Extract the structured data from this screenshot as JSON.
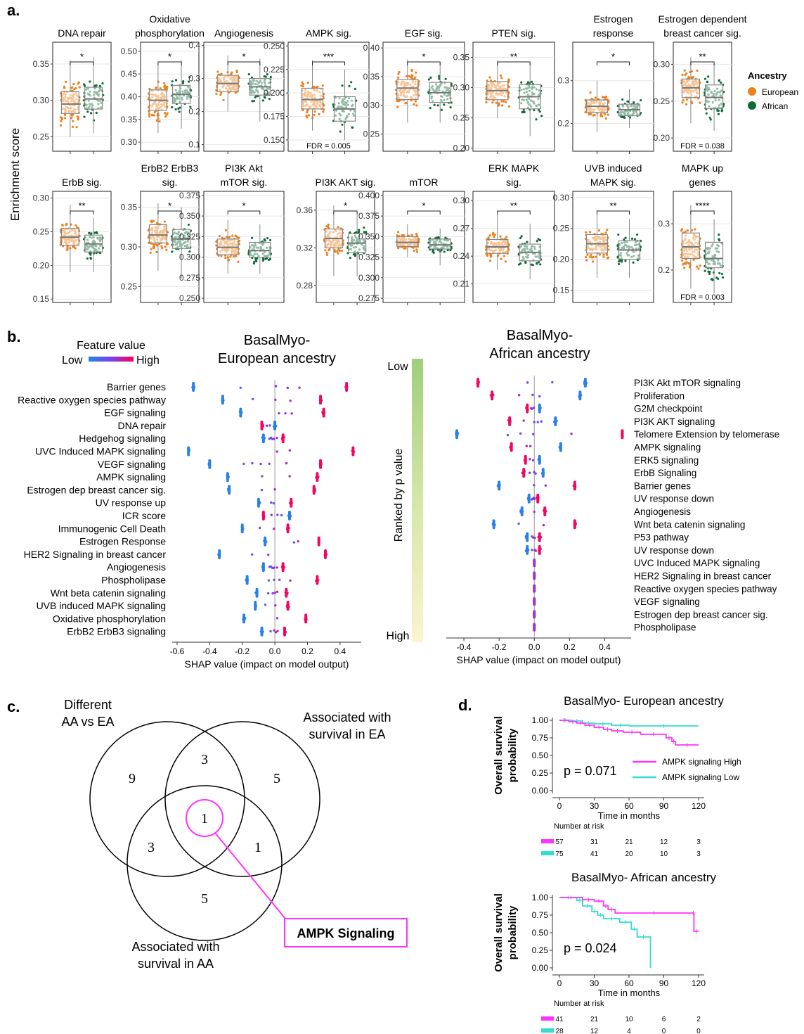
{
  "panels": {
    "a": "a.",
    "b": "b.",
    "c": "c.",
    "d": "d."
  },
  "panel_a": {
    "ylabel": "Enrichment score",
    "legend": {
      "title": "Ancestry",
      "items": [
        {
          "name": "European",
          "color": "#f07f1a"
        },
        {
          "name": "African",
          "color": "#0f6a3a"
        }
      ]
    },
    "plots": [
      {
        "title": [
          "DNA repair"
        ],
        "sig": "*",
        "ticks": [
          "0.35",
          "0.30",
          "0.25"
        ],
        "tickv": [
          0.35,
          0.3,
          0.25
        ],
        "ylim": [
          0.23,
          0.38
        ],
        "eu": {
          "q1": 0.282,
          "med": 0.295,
          "q3": 0.312,
          "lo": 0.25,
          "hi": 0.355
        },
        "af": {
          "q1": 0.288,
          "med": 0.302,
          "q3": 0.318,
          "lo": 0.255,
          "hi": 0.36
        },
        "fdr": ""
      },
      {
        "title": [
          "Oxidative",
          "phosphorylation"
        ],
        "sig": "*",
        "ticks": [
          "0.50",
          "0.45",
          "0.40",
          "0.35",
          "0.30"
        ],
        "tickv": [
          0.5,
          0.45,
          0.4,
          0.35,
          0.3
        ],
        "ylim": [
          0.28,
          0.52
        ],
        "eu": {
          "q1": 0.37,
          "med": 0.392,
          "q3": 0.415,
          "lo": 0.32,
          "hi": 0.47
        },
        "af": {
          "q1": 0.385,
          "med": 0.405,
          "q3": 0.425,
          "lo": 0.33,
          "hi": 0.48
        },
        "fdr": ""
      },
      {
        "title": [
          "Angiogenesis"
        ],
        "sig": "*",
        "ticks": [
          "0.4",
          "0.3",
          "0.2",
          "0.1"
        ],
        "tickv": [
          0.4,
          0.3,
          0.2,
          0.1
        ],
        "ylim": [
          0.08,
          0.41
        ],
        "eu": {
          "q1": 0.26,
          "med": 0.285,
          "q3": 0.31,
          "lo": 0.2,
          "hi": 0.37
        },
        "af": {
          "q1": 0.25,
          "med": 0.275,
          "q3": 0.3,
          "lo": 0.17,
          "hi": 0.36
        },
        "fdr": ""
      },
      {
        "title": [
          "AMPK sig."
        ],
        "sig": "***",
        "ticks": [
          "0.250",
          "0.225",
          "0.200",
          "0.175",
          "0.150"
        ],
        "tickv": [
          0.25,
          0.225,
          0.2,
          0.175,
          0.15
        ],
        "ylim": [
          0.138,
          0.254
        ],
        "eu": {
          "q1": 0.183,
          "med": 0.193,
          "q3": 0.205,
          "lo": 0.16,
          "hi": 0.235
        },
        "af": {
          "q1": 0.17,
          "med": 0.183,
          "q3": 0.196,
          "lo": 0.15,
          "hi": 0.225
        },
        "fdr": "FDR = 0.005"
      },
      {
        "title": [
          "EGF sig."
        ],
        "sig": "*",
        "ticks": [
          "0.40",
          "0.35",
          "0.30",
          "0.25"
        ],
        "tickv": [
          0.4,
          0.35,
          0.3,
          0.25
        ],
        "ylim": [
          0.22,
          0.41
        ],
        "eu": {
          "q1": 0.31,
          "med": 0.33,
          "q3": 0.345,
          "lo": 0.27,
          "hi": 0.38
        },
        "af": {
          "q1": 0.305,
          "med": 0.322,
          "q3": 0.34,
          "lo": 0.27,
          "hi": 0.375
        },
        "fdr": ""
      },
      {
        "title": [
          "PTEN sig."
        ],
        "sig": "**",
        "ticks": [
          "0.35",
          "0.30",
          "0.25",
          "0.20"
        ],
        "tickv": [
          0.35,
          0.3,
          0.25,
          0.2
        ],
        "ylim": [
          0.195,
          0.375
        ],
        "eu": {
          "q1": 0.28,
          "med": 0.295,
          "q3": 0.31,
          "lo": 0.25,
          "hi": 0.345
        },
        "af": {
          "q1": 0.265,
          "med": 0.285,
          "q3": 0.305,
          "lo": 0.22,
          "hi": 0.34
        },
        "fdr": ""
      },
      {
        "title": [
          "Estrogen",
          "response"
        ],
        "sig": "*",
        "ticks": [
          "0.3",
          "0.2"
        ],
        "tickv": [
          0.3,
          0.2
        ],
        "ylim": [
          0.135,
          0.39
        ],
        "eu": {
          "q1": 0.225,
          "med": 0.24,
          "q3": 0.255,
          "lo": 0.18,
          "hi": 0.3
        },
        "af": {
          "q1": 0.218,
          "med": 0.232,
          "q3": 0.245,
          "lo": 0.19,
          "hi": 0.28
        },
        "fdr": ""
      },
      {
        "title": [
          "Estrogen dependent",
          "breast cancer sig."
        ],
        "sig": "**",
        "ticks": [
          "0.30",
          "0.25",
          "0.20"
        ],
        "tickv": [
          0.3,
          0.25,
          0.2
        ],
        "ylim": [
          0.182,
          0.33
        ],
        "eu": {
          "q1": 0.255,
          "med": 0.268,
          "q3": 0.28,
          "lo": 0.22,
          "hi": 0.31
        },
        "af": {
          "q1": 0.24,
          "med": 0.255,
          "q3": 0.272,
          "lo": 0.21,
          "hi": 0.3
        },
        "fdr": "FDR = 0.038"
      },
      {
        "title": [
          "ErbB sig."
        ],
        "sig": "**",
        "ticks": [
          "0.30",
          "0.25",
          "0.20",
          "0.15"
        ],
        "tickv": [
          0.3,
          0.25,
          0.2,
          0.15
        ],
        "ylim": [
          0.145,
          0.31
        ],
        "eu": {
          "q1": 0.23,
          "med": 0.242,
          "q3": 0.255,
          "lo": 0.19,
          "hi": 0.29
        },
        "af": {
          "q1": 0.22,
          "med": 0.232,
          "q3": 0.245,
          "lo": 0.19,
          "hi": 0.27
        },
        "fdr": ""
      },
      {
        "title": [
          "ErbB2 ErbB3",
          "sig."
        ],
        "sig": "*",
        "ticks": [
          "0.35",
          "0.30",
          "0.25"
        ],
        "tickv": [
          0.35,
          0.3,
          0.25
        ],
        "ylim": [
          0.23,
          0.37
        ],
        "eu": {
          "q1": 0.305,
          "med": 0.315,
          "q3": 0.328,
          "lo": 0.27,
          "hi": 0.355
        },
        "af": {
          "q1": 0.298,
          "med": 0.31,
          "q3": 0.322,
          "lo": 0.26,
          "hi": 0.35
        },
        "fdr": ""
      },
      {
        "title": [
          "PI3K Akt",
          "mTOR sig."
        ],
        "sig": "*",
        "ticks": [
          "0.375",
          "0.350",
          "0.325",
          "0.300",
          "0.275",
          "0.250"
        ],
        "tickv": [
          0.375,
          0.35,
          0.325,
          0.3,
          0.275,
          0.25
        ],
        "ylim": [
          0.245,
          0.38
        ],
        "eu": {
          "q1": 0.303,
          "med": 0.312,
          "q3": 0.322,
          "lo": 0.28,
          "hi": 0.345
        },
        "af": {
          "q1": 0.3,
          "med": 0.308,
          "q3": 0.318,
          "lo": 0.28,
          "hi": 0.34
        },
        "fdr": ""
      },
      {
        "title": [
          "PI3K AKT sig."
        ],
        "sig": "*",
        "ticks": [
          "0.36",
          "0.32",
          "0.28"
        ],
        "tickv": [
          0.36,
          0.32,
          0.28
        ],
        "ylim": [
          0.262,
          0.38
        ],
        "eu": {
          "q1": 0.32,
          "med": 0.33,
          "q3": 0.34,
          "lo": 0.29,
          "hi": 0.365
        },
        "af": {
          "q1": 0.315,
          "med": 0.325,
          "q3": 0.335,
          "lo": 0.29,
          "hi": 0.355
        },
        "fdr": ""
      },
      {
        "title": [
          "mTOR"
        ],
        "sig": "*",
        "ticks": [
          "0.400",
          "0.375",
          "0.350",
          "0.325",
          "0.300",
          "0.275"
        ],
        "tickv": [
          0.4,
          0.375,
          0.35,
          0.325,
          0.3,
          0.275
        ],
        "ylim": [
          0.27,
          0.405
        ],
        "eu": {
          "q1": 0.338,
          "med": 0.343,
          "q3": 0.35,
          "lo": 0.325,
          "hi": 0.365
        },
        "af": {
          "q1": 0.335,
          "med": 0.34,
          "q3": 0.347,
          "lo": 0.315,
          "hi": 0.36
        },
        "fdr": ""
      },
      {
        "title": [
          "ERK MAPK",
          "sig."
        ],
        "sig": "**",
        "ticks": [
          "0.30",
          "0.27",
          "0.24",
          "0.21"
        ],
        "tickv": [
          0.3,
          0.27,
          0.24,
          0.21
        ],
        "ylim": [
          0.19,
          0.31
        ],
        "eu": {
          "q1": 0.243,
          "med": 0.25,
          "q3": 0.258,
          "lo": 0.225,
          "hi": 0.285
        },
        "af": {
          "q1": 0.235,
          "med": 0.244,
          "q3": 0.253,
          "lo": 0.215,
          "hi": 0.275
        },
        "fdr": ""
      },
      {
        "title": [
          "UVB induced",
          "MAPK sig."
        ],
        "sig": "**",
        "ticks": [
          "0.30",
          "0.25",
          "0.20",
          "0.15"
        ],
        "tickv": [
          0.3,
          0.25,
          0.2,
          0.15
        ],
        "ylim": [
          0.13,
          0.31
        ],
        "eu": {
          "q1": 0.21,
          "med": 0.225,
          "q3": 0.24,
          "lo": 0.17,
          "hi": 0.28
        },
        "af": {
          "q1": 0.2,
          "med": 0.215,
          "q3": 0.23,
          "lo": 0.17,
          "hi": 0.265
        },
        "fdr": ""
      },
      {
        "title": [
          "MAPK up",
          "genes"
        ],
        "sig": "****",
        "ticks": [
          "0.3",
          "0.2"
        ],
        "tickv": [
          0.3,
          0.2
        ],
        "ylim": [
          0.13,
          0.37
        ],
        "eu": {
          "q1": 0.225,
          "med": 0.25,
          "q3": 0.28,
          "lo": 0.16,
          "hi": 0.34
        },
        "af": {
          "q1": 0.205,
          "med": 0.225,
          "q3": 0.26,
          "lo": 0.15,
          "hi": 0.31
        },
        "fdr": "FDR = 0.003"
      }
    ]
  },
  "panel_b": {
    "colorbar_title": "Feature value",
    "colorbar_low": "Low",
    "colorbar_high": "High",
    "xlabel": "SHAP value (impact on model output)",
    "rank_label": "Ranked by p value",
    "rank_low": "Low",
    "rank_high": "High",
    "european": {
      "title": [
        "BasalMyo-",
        "European ancestry"
      ],
      "xticks": [
        "-0.6",
        "-0.4",
        "-0.2",
        "0.0",
        "0.2",
        "0.4"
      ],
      "xtickv": [
        -0.6,
        -0.4,
        -0.2,
        0.0,
        0.2,
        0.4
      ],
      "xlim": [
        -0.63,
        0.53
      ],
      "features": [
        "Barrier genes",
        "Reactive oxygen species pathway",
        "EGF signaling",
        "DNA repair",
        "Hedgehog signaling",
        "UVC Induced MAPK signaling",
        "VEGF signaling",
        "AMPK signaling",
        "Estrogen dep breast cancer sig.",
        "UV response up",
        "ICR score",
        "Immunogenic Cell Death",
        "Estrogen Response",
        "HER2 Signaling in breast cancer",
        "Angiogenesis",
        "Phospholipase",
        "Wnt beta catenin signaling",
        "UVB induced MAPK signaling",
        "Oxidative phosphorylation",
        "ErbB2 ErbB3 signaling"
      ],
      "low_shap": [
        -0.5,
        -0.32,
        -0.21,
        0.0,
        -0.07,
        -0.53,
        -0.4,
        -0.29,
        -0.28,
        -0.1,
        0.09,
        -0.2,
        -0.06,
        -0.34,
        -0.07,
        -0.17,
        -0.11,
        -0.12,
        -0.19,
        -0.08
      ],
      "high_shap": [
        0.44,
        0.28,
        0.3,
        -0.08,
        0.05,
        0.48,
        0.28,
        0.26,
        0.24,
        0.1,
        -0.07,
        0.08,
        0.27,
        0.31,
        0.05,
        0.26,
        0.07,
        0.08,
        0.19,
        0.06
      ]
    },
    "african": {
      "title": [
        "BasalMyo-",
        "African ancestry"
      ],
      "xticks": [
        "-0.4",
        "-0.2",
        "0.0",
        "0.2",
        "0.4"
      ],
      "xtickv": [
        -0.4,
        -0.2,
        0.0,
        0.2,
        0.4
      ],
      "xlim": [
        -0.5,
        0.55
      ],
      "features": [
        "PI3K Akt mTOR signaling",
        "Proliferation",
        "G2M checkpoint",
        "PI3K AKT signaling",
        "Telomere Extension by telomerase",
        "AMPK signaling",
        "ERK5 signaling",
        "ErbB Signaling",
        "Barrier genes",
        "UV response down",
        "Angiogenesis",
        "Wnt beta catenin signaling",
        "P53 pathway",
        "UV response down",
        "UVC Induced MAPK signaling",
        "HER2 Signaling in breast cancer",
        "Reactive oxygen species pathway",
        "VEGF signaling",
        "Estrogen dep breast cancer sig.",
        "Phospholipase"
      ],
      "low_shap": [
        0.29,
        0.26,
        0.03,
        0.12,
        -0.44,
        0.15,
        0.03,
        0.05,
        -0.2,
        -0.03,
        -0.07,
        -0.23,
        -0.04,
        -0.04,
        0.0,
        0.0,
        0.0,
        0.0,
        0.0,
        0.0
      ],
      "high_shap": [
        -0.32,
        -0.24,
        -0.04,
        -0.14,
        0.5,
        -0.13,
        -0.05,
        -0.06,
        0.23,
        0.02,
        0.06,
        0.23,
        0.03,
        0.03,
        0.0,
        0.0,
        0.0,
        0.0,
        0.0,
        0.0
      ]
    }
  },
  "panel_c": {
    "set1": [
      "Different",
      "AA vs EA"
    ],
    "set2": [
      "Associated with",
      "survival in EA"
    ],
    "set3": [
      "Associated with",
      "survival in AA"
    ],
    "counts": {
      "only1": "9",
      "only2": "5",
      "only3": "5",
      "s12": "3",
      "s13": "3",
      "s23": "1",
      "s123": "1"
    },
    "callout": "AMPK Signaling",
    "highlight_color": "#ff33ff"
  },
  "panel_d": {
    "ylabel": [
      "Overall survival",
      "probability"
    ],
    "xlabel": "Time in months",
    "yticks": [
      "1.00",
      "0.75",
      "0.50",
      "0.25",
      "0.00"
    ],
    "xticks": [
      "0",
      "30",
      "60",
      "90",
      "120"
    ],
    "risk_title": "Number at risk",
    "high_color": "#ff33ff",
    "low_color": "#33ddcc",
    "legend_high": "AMPK signaling High",
    "legend_low": "AMPK signaling Low",
    "plots": [
      {
        "title": "BasalMyo- European ancestry",
        "pvalue": "p = 0.071",
        "show_legend": true,
        "high": [
          [
            0,
            1.0
          ],
          [
            8,
            0.98
          ],
          [
            15,
            0.96
          ],
          [
            22,
            0.93
          ],
          [
            30,
            0.9
          ],
          [
            38,
            0.87
          ],
          [
            45,
            0.85
          ],
          [
            55,
            0.83
          ],
          [
            70,
            0.8
          ],
          [
            92,
            0.75
          ],
          [
            97,
            0.7
          ],
          [
            100,
            0.65
          ],
          [
            120,
            0.65
          ]
        ],
        "low": [
          [
            0,
            1.0
          ],
          [
            10,
            0.99
          ],
          [
            20,
            0.96
          ],
          [
            30,
            0.95
          ],
          [
            45,
            0.93
          ],
          [
            60,
            0.92
          ],
          [
            120,
            0.92
          ]
        ],
        "risk_high": [
          "57",
          "31",
          "21",
          "12",
          "3"
        ],
        "risk_low": [
          "75",
          "41",
          "20",
          "10",
          "3"
        ]
      },
      {
        "title": "BasalMyo- African ancestry",
        "pvalue": "p = 0.024",
        "show_legend": false,
        "high": [
          [
            0,
            1.0
          ],
          [
            20,
            0.97
          ],
          [
            30,
            0.95
          ],
          [
            38,
            0.88
          ],
          [
            42,
            0.83
          ],
          [
            48,
            0.78
          ],
          [
            115,
            0.78
          ],
          [
            116,
            0.52
          ],
          [
            120,
            0.52
          ]
        ],
        "low": [
          [
            0,
            1.0
          ],
          [
            15,
            0.96
          ],
          [
            20,
            0.88
          ],
          [
            28,
            0.8
          ],
          [
            33,
            0.75
          ],
          [
            38,
            0.7
          ],
          [
            52,
            0.65
          ],
          [
            62,
            0.55
          ],
          [
            67,
            0.44
          ],
          [
            78,
            0.44
          ],
          [
            78.5,
            0.0
          ]
        ],
        "risk_high": [
          "41",
          "21",
          "10",
          "6",
          "2"
        ],
        "risk_low": [
          "28",
          "12",
          "4",
          "0",
          "0"
        ]
      }
    ]
  }
}
